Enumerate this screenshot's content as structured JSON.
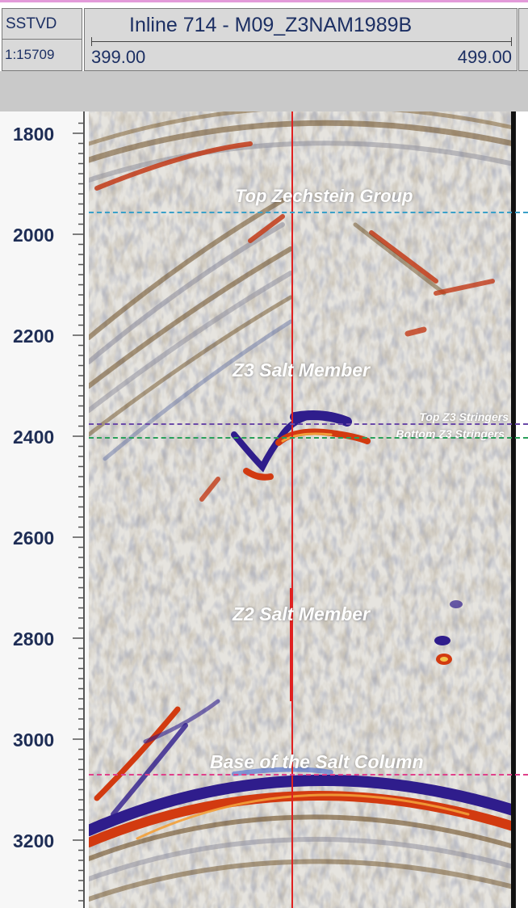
{
  "header": {
    "depth_label": "SSTVD",
    "scale_label": "1:15709",
    "title": "Inline 714 - M09_Z3NAM1989B",
    "range_start": "399.00",
    "range_end": "499.00"
  },
  "axis": {
    "ticks": [
      "1800",
      "2000",
      "2200",
      "2400",
      "2600",
      "2800",
      "3000",
      "3200"
    ]
  },
  "horizons": {
    "top_zechstein": {
      "label": "Top Zechstein Group",
      "color": "#3aa0c8"
    },
    "z3_salt": {
      "label": "Z3 Salt Member"
    },
    "top_z3_stringers": {
      "label": "Top Z3 Stringers",
      "color": "#6b4aa8"
    },
    "bottom_z3_stringers": {
      "label": "Bottom Z3 Stringers",
      "color": "#2aa05a"
    },
    "z2_salt": {
      "label": "Z2 Salt Member"
    },
    "base_salt": {
      "label": "Base of the Salt Column",
      "color": "#e0408a"
    }
  },
  "colors": {
    "well_line": "#e02020",
    "amp_red": "#d23a10",
    "amp_blue": "#2f1d8c",
    "amp_brown": "#7a5a2a"
  }
}
